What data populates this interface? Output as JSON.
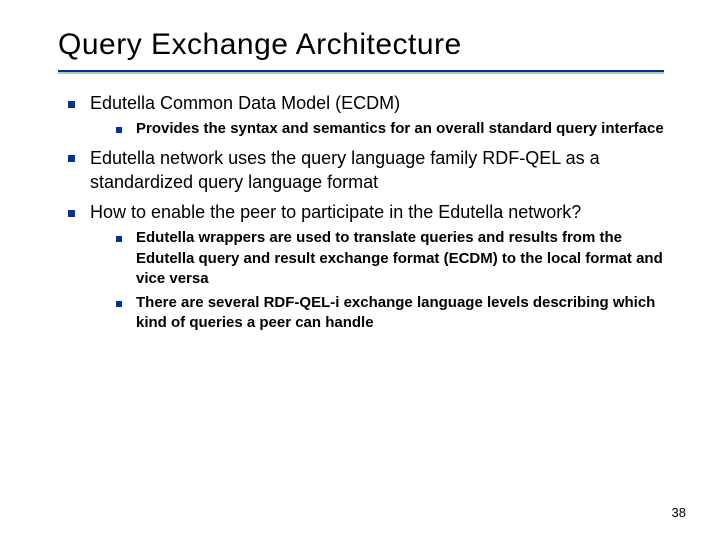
{
  "title": "Query Exchange Architecture",
  "title_fontsize": 30,
  "bullet_color": "#003399",
  "rule_color": "#003399",
  "rule_shadow": "#c0c0c0",
  "background_color": "#ffffff",
  "text_color": "#000000",
  "lvl1_fontsize": 18,
  "lvl2_fontsize": 15,
  "items": [
    {
      "text": "Edutella Common Data Model (ECDM)",
      "children": [
        {
          "text": "Provides the syntax and semantics for an overall standard query interface"
        }
      ]
    },
    {
      "text": "Edutella network uses the query language family RDF-QEL as a standardized query language format",
      "children": []
    },
    {
      "text": "How to enable the peer to participate in the Edutella network?",
      "children": [
        {
          "text": "Edutella wrappers are used to translate queries and results from the Edutella query and result exchange format (ECDM) to the local format and vice versa"
        },
        {
          "text": "There are several RDF-QEL-i exchange language levels describing which kind of queries a peer can handle"
        }
      ]
    }
  ],
  "page_number": "38"
}
